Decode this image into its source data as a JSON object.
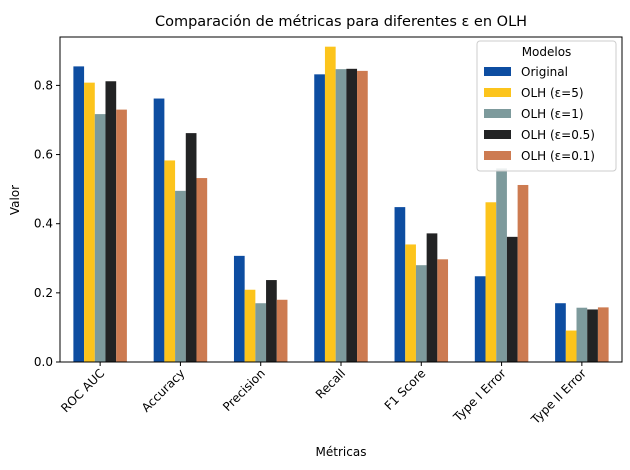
{
  "chart_data": {
    "type": "bar",
    "title": "Comparación de métricas para diferentes ε en OLH",
    "xlabel": "Métricas",
    "ylabel": "Valor",
    "ylim": [
      0,
      0.94
    ],
    "yticks": [
      0.0,
      0.2,
      0.4,
      0.6,
      0.8
    ],
    "grid": false,
    "legend_title": "Modelos",
    "legend_position": "top-right",
    "categories": [
      "ROC AUC",
      "Accuracy",
      "Precision",
      "Recall",
      "F1 Score",
      "Type I Error",
      "Type II Error"
    ],
    "series": [
      {
        "name": "Original",
        "color": "#0d4da1",
        "values": [
          0.855,
          0.762,
          0.307,
          0.832,
          0.448,
          0.248,
          0.17
        ]
      },
      {
        "name": "OLH (ε=5)",
        "color": "#fcc41c",
        "values": [
          0.808,
          0.583,
          0.209,
          0.912,
          0.34,
          0.462,
          0.091
        ]
      },
      {
        "name": "OLH (ε=1)",
        "color": "#7d9a9c",
        "values": [
          0.717,
          0.495,
          0.17,
          0.847,
          0.28,
          0.56,
          0.157
        ]
      },
      {
        "name": "OLH (ε=0.5)",
        "color": "#222324",
        "values": [
          0.812,
          0.662,
          0.237,
          0.848,
          0.372,
          0.362,
          0.152
        ]
      },
      {
        "name": "OLH (ε=0.1)",
        "color": "#cd7b51",
        "values": [
          0.73,
          0.532,
          0.18,
          0.842,
          0.297,
          0.512,
          0.158
        ]
      }
    ]
  }
}
